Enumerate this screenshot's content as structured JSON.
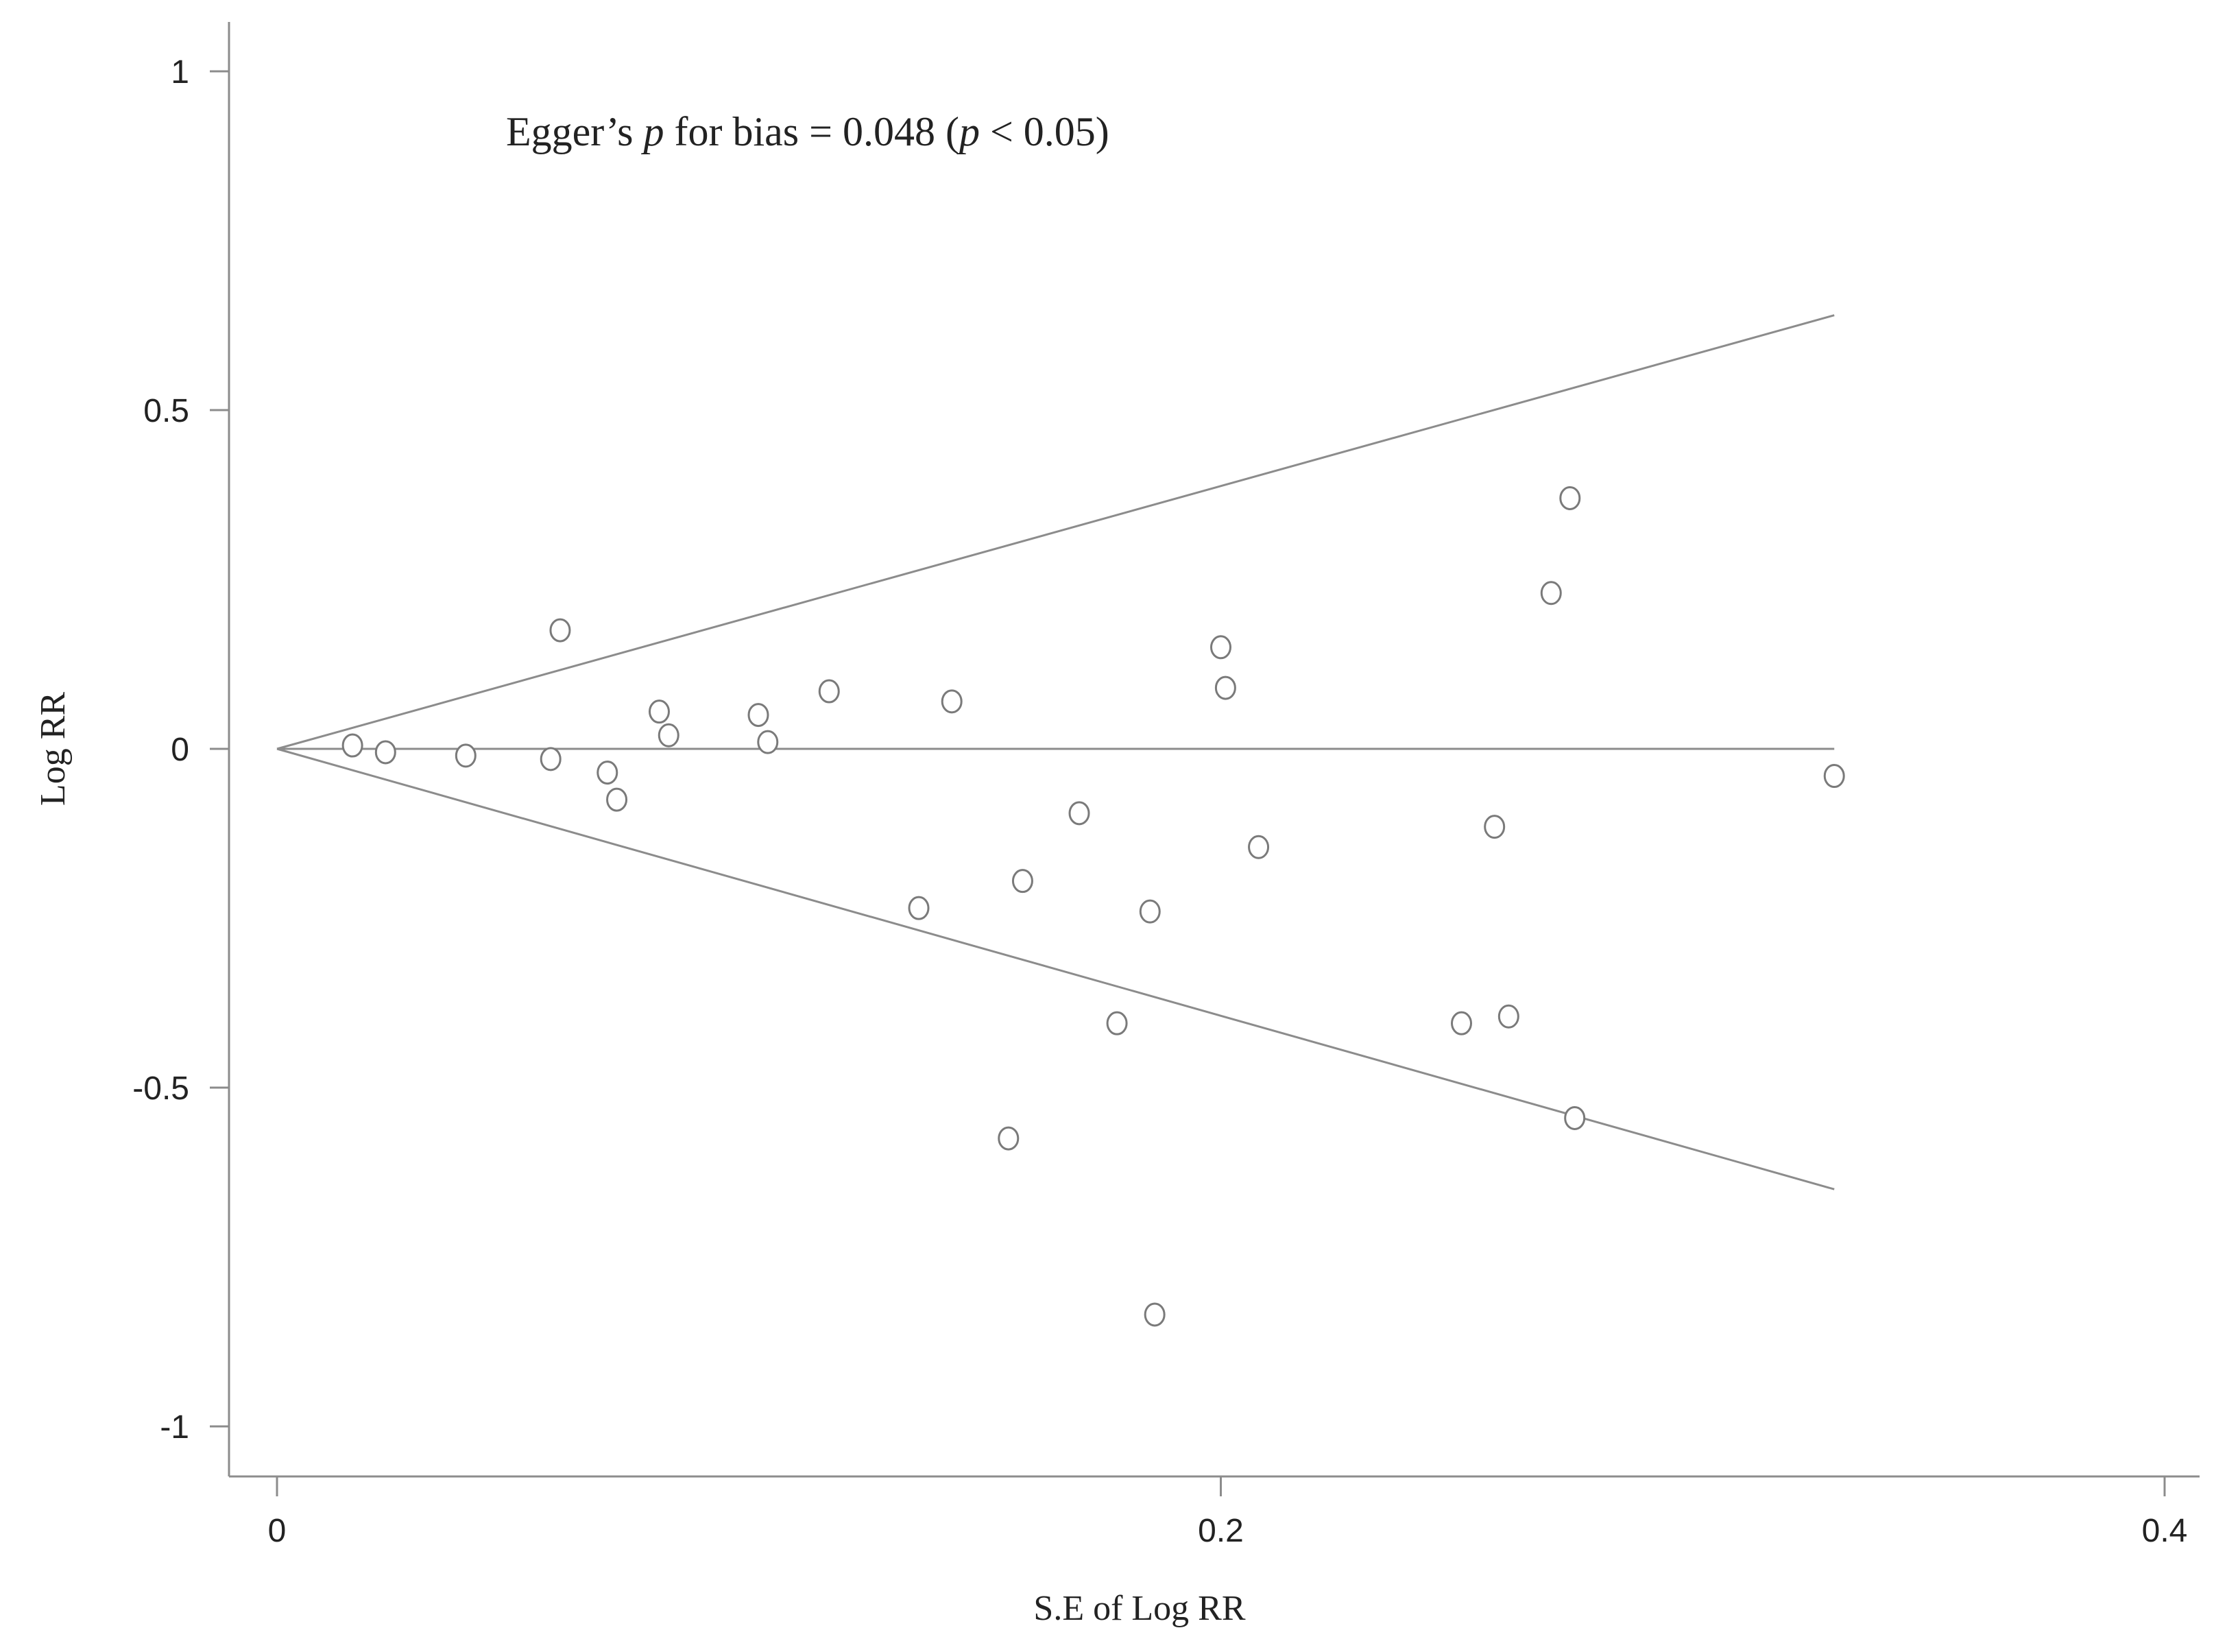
{
  "chart_data": {
    "type": "scatter",
    "title": "",
    "xlabel": "S.E of Log RR",
    "ylabel": "Log RR",
    "xlim": [
      0,
      0.4
    ],
    "ylim": [
      -1,
      1
    ],
    "xticks": [
      0,
      0.2,
      0.4
    ],
    "xtick_labels": [
      "0",
      "0.2",
      "0.4"
    ],
    "yticks": [
      1,
      0.5,
      0,
      -0.5,
      -1
    ],
    "ytick_labels": [
      "1",
      "0.5",
      "0",
      "-0.5",
      "-1"
    ],
    "grid": false,
    "annotation": {
      "prefix": "Egger’s ",
      "p1": "p",
      "mid": " for bias = 0.048 (",
      "p2": "p",
      "suffix": " < 0.05)"
    },
    "funnel": {
      "center": 0,
      "se_max": 0.33,
      "upper_end": 0.64,
      "lower_end": -0.65
    },
    "points": [
      {
        "se": 0.016,
        "logrr": 0.005
      },
      {
        "se": 0.023,
        "logrr": -0.005
      },
      {
        "se": 0.04,
        "logrr": -0.01
      },
      {
        "se": 0.058,
        "logrr": -0.015
      },
      {
        "se": 0.06,
        "logrr": 0.175
      },
      {
        "se": 0.07,
        "logrr": -0.035
      },
      {
        "se": 0.072,
        "logrr": -0.075
      },
      {
        "se": 0.081,
        "logrr": 0.055
      },
      {
        "se": 0.083,
        "logrr": 0.02
      },
      {
        "se": 0.102,
        "logrr": 0.05
      },
      {
        "se": 0.104,
        "logrr": 0.01
      },
      {
        "se": 0.117,
        "logrr": 0.085
      },
      {
        "se": 0.136,
        "logrr": -0.235
      },
      {
        "se": 0.143,
        "logrr": 0.07
      },
      {
        "se": 0.155,
        "logrr": -0.575
      },
      {
        "se": 0.158,
        "logrr": -0.195
      },
      {
        "se": 0.17,
        "logrr": -0.095
      },
      {
        "se": 0.178,
        "logrr": -0.405
      },
      {
        "se": 0.185,
        "logrr": -0.24
      },
      {
        "se": 0.186,
        "logrr": -0.835
      },
      {
        "se": 0.2,
        "logrr": 0.15
      },
      {
        "se": 0.201,
        "logrr": 0.09
      },
      {
        "se": 0.208,
        "logrr": -0.145
      },
      {
        "se": 0.251,
        "logrr": -0.405
      },
      {
        "se": 0.258,
        "logrr": -0.115
      },
      {
        "se": 0.261,
        "logrr": -0.395
      },
      {
        "se": 0.27,
        "logrr": 0.23
      },
      {
        "se": 0.274,
        "logrr": 0.37
      },
      {
        "se": 0.275,
        "logrr": -0.545
      },
      {
        "se": 0.33,
        "logrr": -0.04
      }
    ]
  }
}
